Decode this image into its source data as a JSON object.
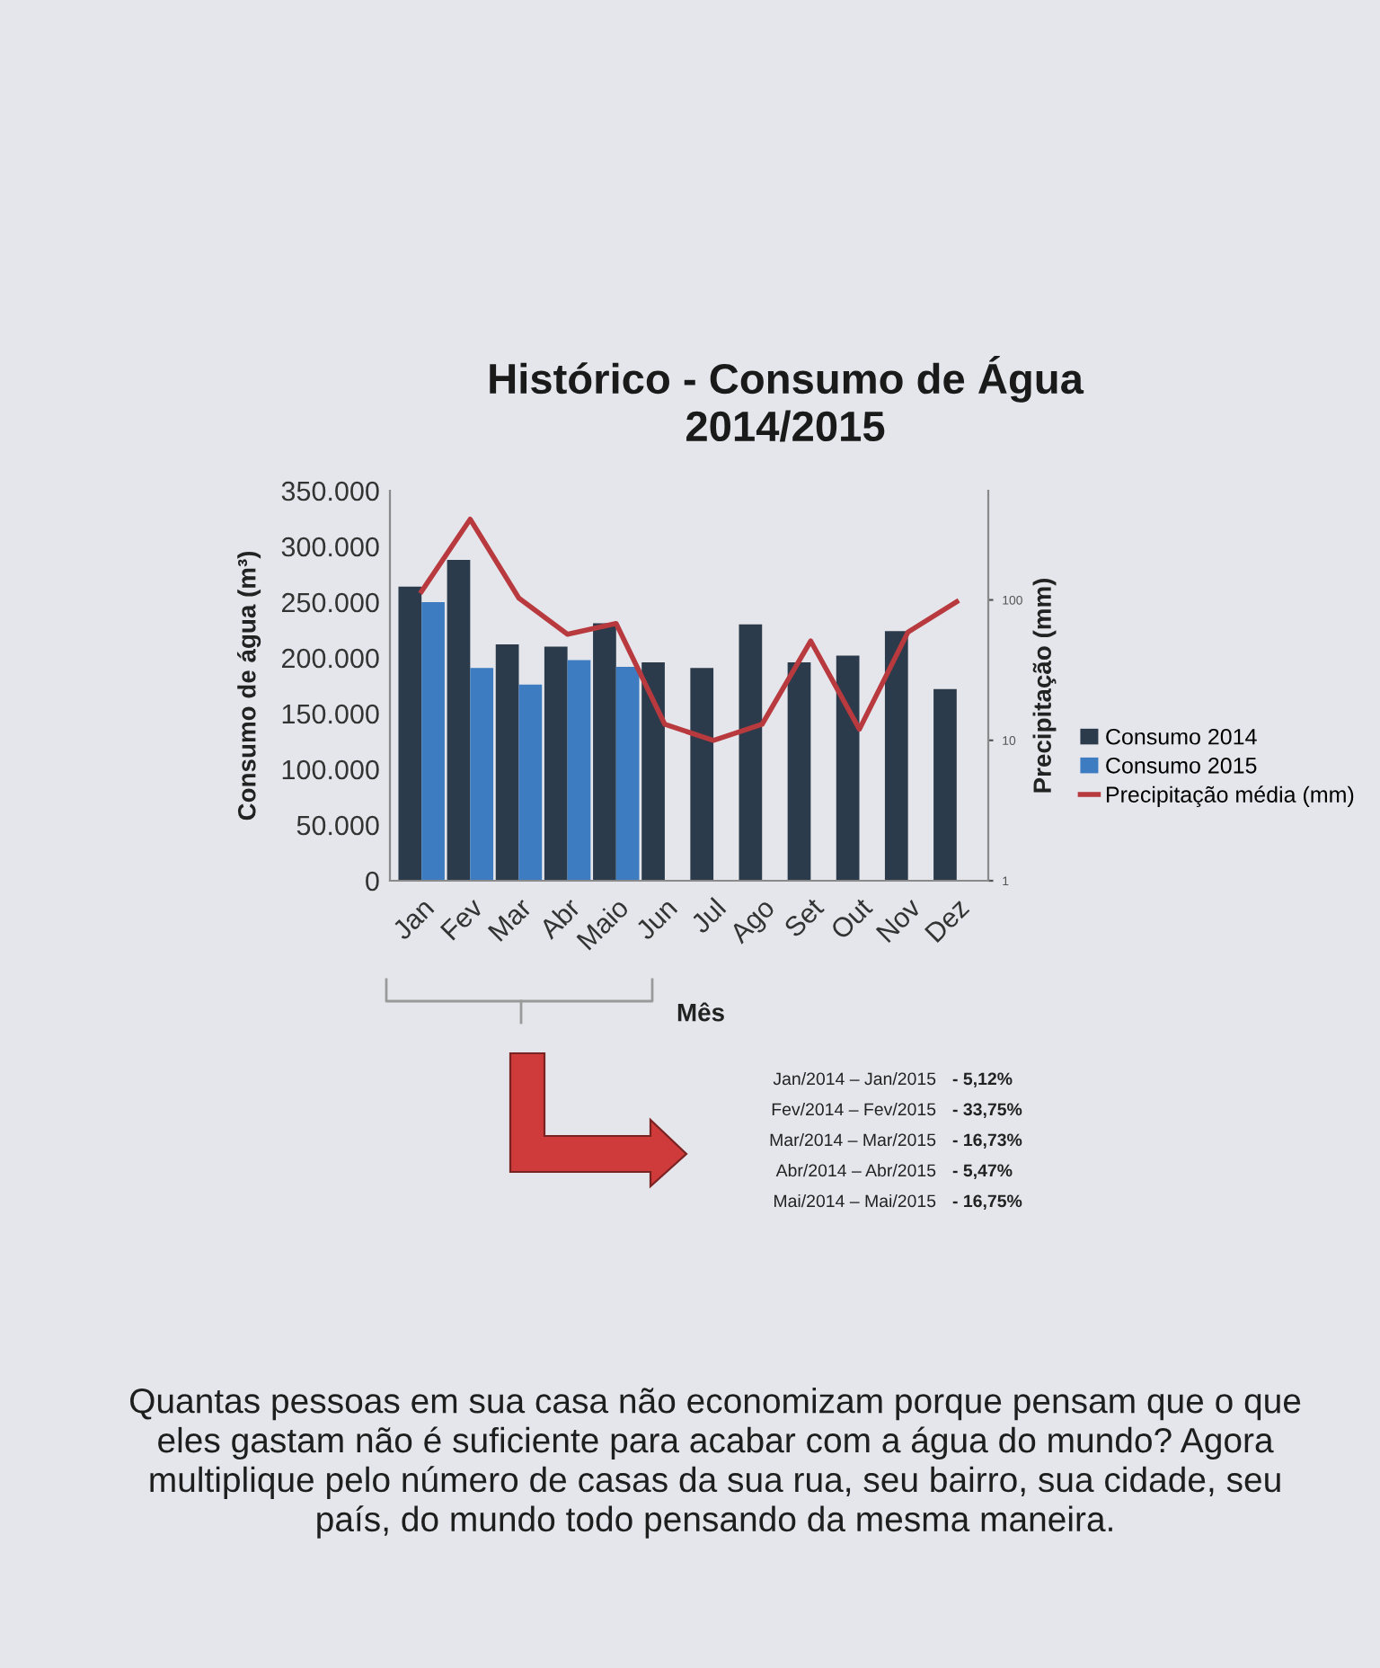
{
  "chart_data": {
    "type": "bar",
    "title": "Histórico - Consumo de Água\n2014/2015",
    "xlabel": "Mês",
    "ylabel": "Consumo de água (m³)",
    "y2label": "Precipitação (mm)",
    "categories": [
      "Jan",
      "Fev",
      "Mar",
      "Abr",
      "Maio",
      "Jun",
      "Jul",
      "Ago",
      "Set",
      "Out",
      "Nov",
      "Dez"
    ],
    "series": [
      {
        "name": "Consumo 2014",
        "color": "#2c3b4b",
        "values": [
          264000,
          288000,
          212000,
          210000,
          231000,
          196000,
          191000,
          230000,
          196000,
          202000,
          224000,
          172000
        ]
      },
      {
        "name": "Consumo 2015",
        "color": "#3d7cc0",
        "values": [
          250000,
          191000,
          176000,
          198000,
          192000,
          null,
          null,
          null,
          null,
          null,
          null,
          null
        ]
      },
      {
        "name": "Precipitação média (mm)",
        "type": "line",
        "axis": "y2",
        "color": "#b83a3e",
        "values": [
          115,
          376,
          103,
          57,
          68,
          13,
          10,
          13,
          51,
          12,
          59,
          97
        ]
      }
    ],
    "ylim": [
      0,
      350000
    ],
    "yticks": [
      0,
      {
        "value": 50000,
        "label": "50.000"
      },
      {
        "value": 100000,
        "label": "100.000"
      },
      {
        "value": 150000,
        "label": "150.000"
      },
      {
        "value": 200000,
        "label": "200.000"
      },
      {
        "value": 250000,
        "label": "250.000"
      },
      {
        "value": 300000,
        "label": "300.000"
      },
      {
        "value": 350000,
        "label": "350.000"
      }
    ],
    "y2lim": [
      1,
      600
    ],
    "y2ticks": [
      1,
      10,
      100
    ],
    "log": "y2",
    "legend": "right",
    "annotations": [
      "Jan/2014 – Jan/2015",
      "- 5,12%",
      "Fev/2014 – Fev/2015",
      "- 33,75%",
      "Mar/2014 – Mar/2015",
      "- 16,73%",
      "Abr/2014 – Abr/2015",
      "- 5,47%",
      "Mai/2014 – Mai/2015",
      "- 16,75%",
      "Quantas pessoas em sua casa não economizam porque pensam que o que\neles gastam não é suficiente para acabar com a água do mundo? Agora\nmultiplique pelo número de casas da sua rua, seu bairro, sua cidade, seu\npaís, do mundo todo pensando da mesma maneira."
    ]
  }
}
